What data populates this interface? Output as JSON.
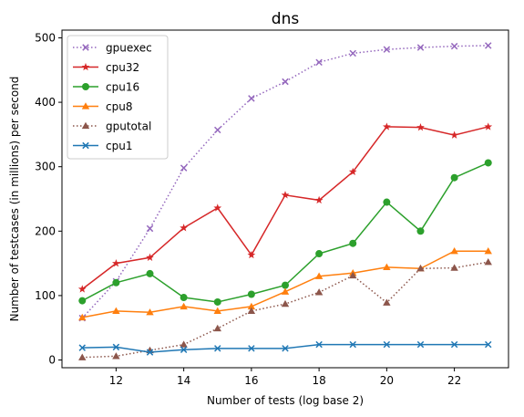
{
  "chart_data": {
    "type": "line",
    "title": "dns",
    "xlabel": "Number of tests (log base 2)",
    "ylabel": "Number of testcases (in millions) per second",
    "xlim": [
      10.4,
      23.6
    ],
    "ylim": [
      -12,
      512
    ],
    "xticks": [
      12,
      14,
      16,
      18,
      20,
      22
    ],
    "yticks": [
      0,
      100,
      200,
      300,
      400,
      500
    ],
    "grid": false,
    "legend_position": "upper-left",
    "x": [
      11,
      12,
      13,
      14,
      15,
      16,
      17,
      18,
      19,
      20,
      21,
      22,
      23
    ],
    "series": [
      {
        "name": "gpuexec",
        "color": "#9467bd",
        "linestyle": "dotted",
        "marker": "x",
        "values": [
          65,
          122,
          204,
          298,
          357,
          406,
          432,
          462,
          476,
          482,
          485,
          487,
          488
        ]
      },
      {
        "name": "cpu32",
        "color": "#d62728",
        "linestyle": "solid",
        "marker": "star",
        "values": [
          110,
          150,
          159,
          205,
          236,
          163,
          256,
          248,
          292,
          362,
          361,
          349,
          362
        ]
      },
      {
        "name": "cpu16",
        "color": "#2ca02c",
        "linestyle": "solid",
        "marker": "circle",
        "values": [
          92,
          120,
          134,
          97,
          90,
          102,
          116,
          165,
          181,
          245,
          200,
          283,
          306
        ]
      },
      {
        "name": "cpu8",
        "color": "#ff7f0e",
        "linestyle": "solid",
        "marker": "triangle",
        "values": [
          66,
          76,
          74,
          83,
          76,
          83,
          106,
          130,
          135,
          144,
          142,
          169,
          169
        ]
      },
      {
        "name": "gputotal",
        "color": "#8c564b",
        "linestyle": "dotted",
        "marker": "triangle",
        "values": [
          4,
          6,
          15,
          24,
          49,
          76,
          87,
          105,
          131,
          89,
          142,
          143,
          152
        ]
      },
      {
        "name": "cpu1",
        "color": "#1f77b4",
        "linestyle": "solid",
        "marker": "x",
        "values": [
          19,
          20,
          12,
          16,
          18,
          18,
          18,
          24,
          24,
          24,
          24,
          24,
          24
        ]
      }
    ]
  }
}
